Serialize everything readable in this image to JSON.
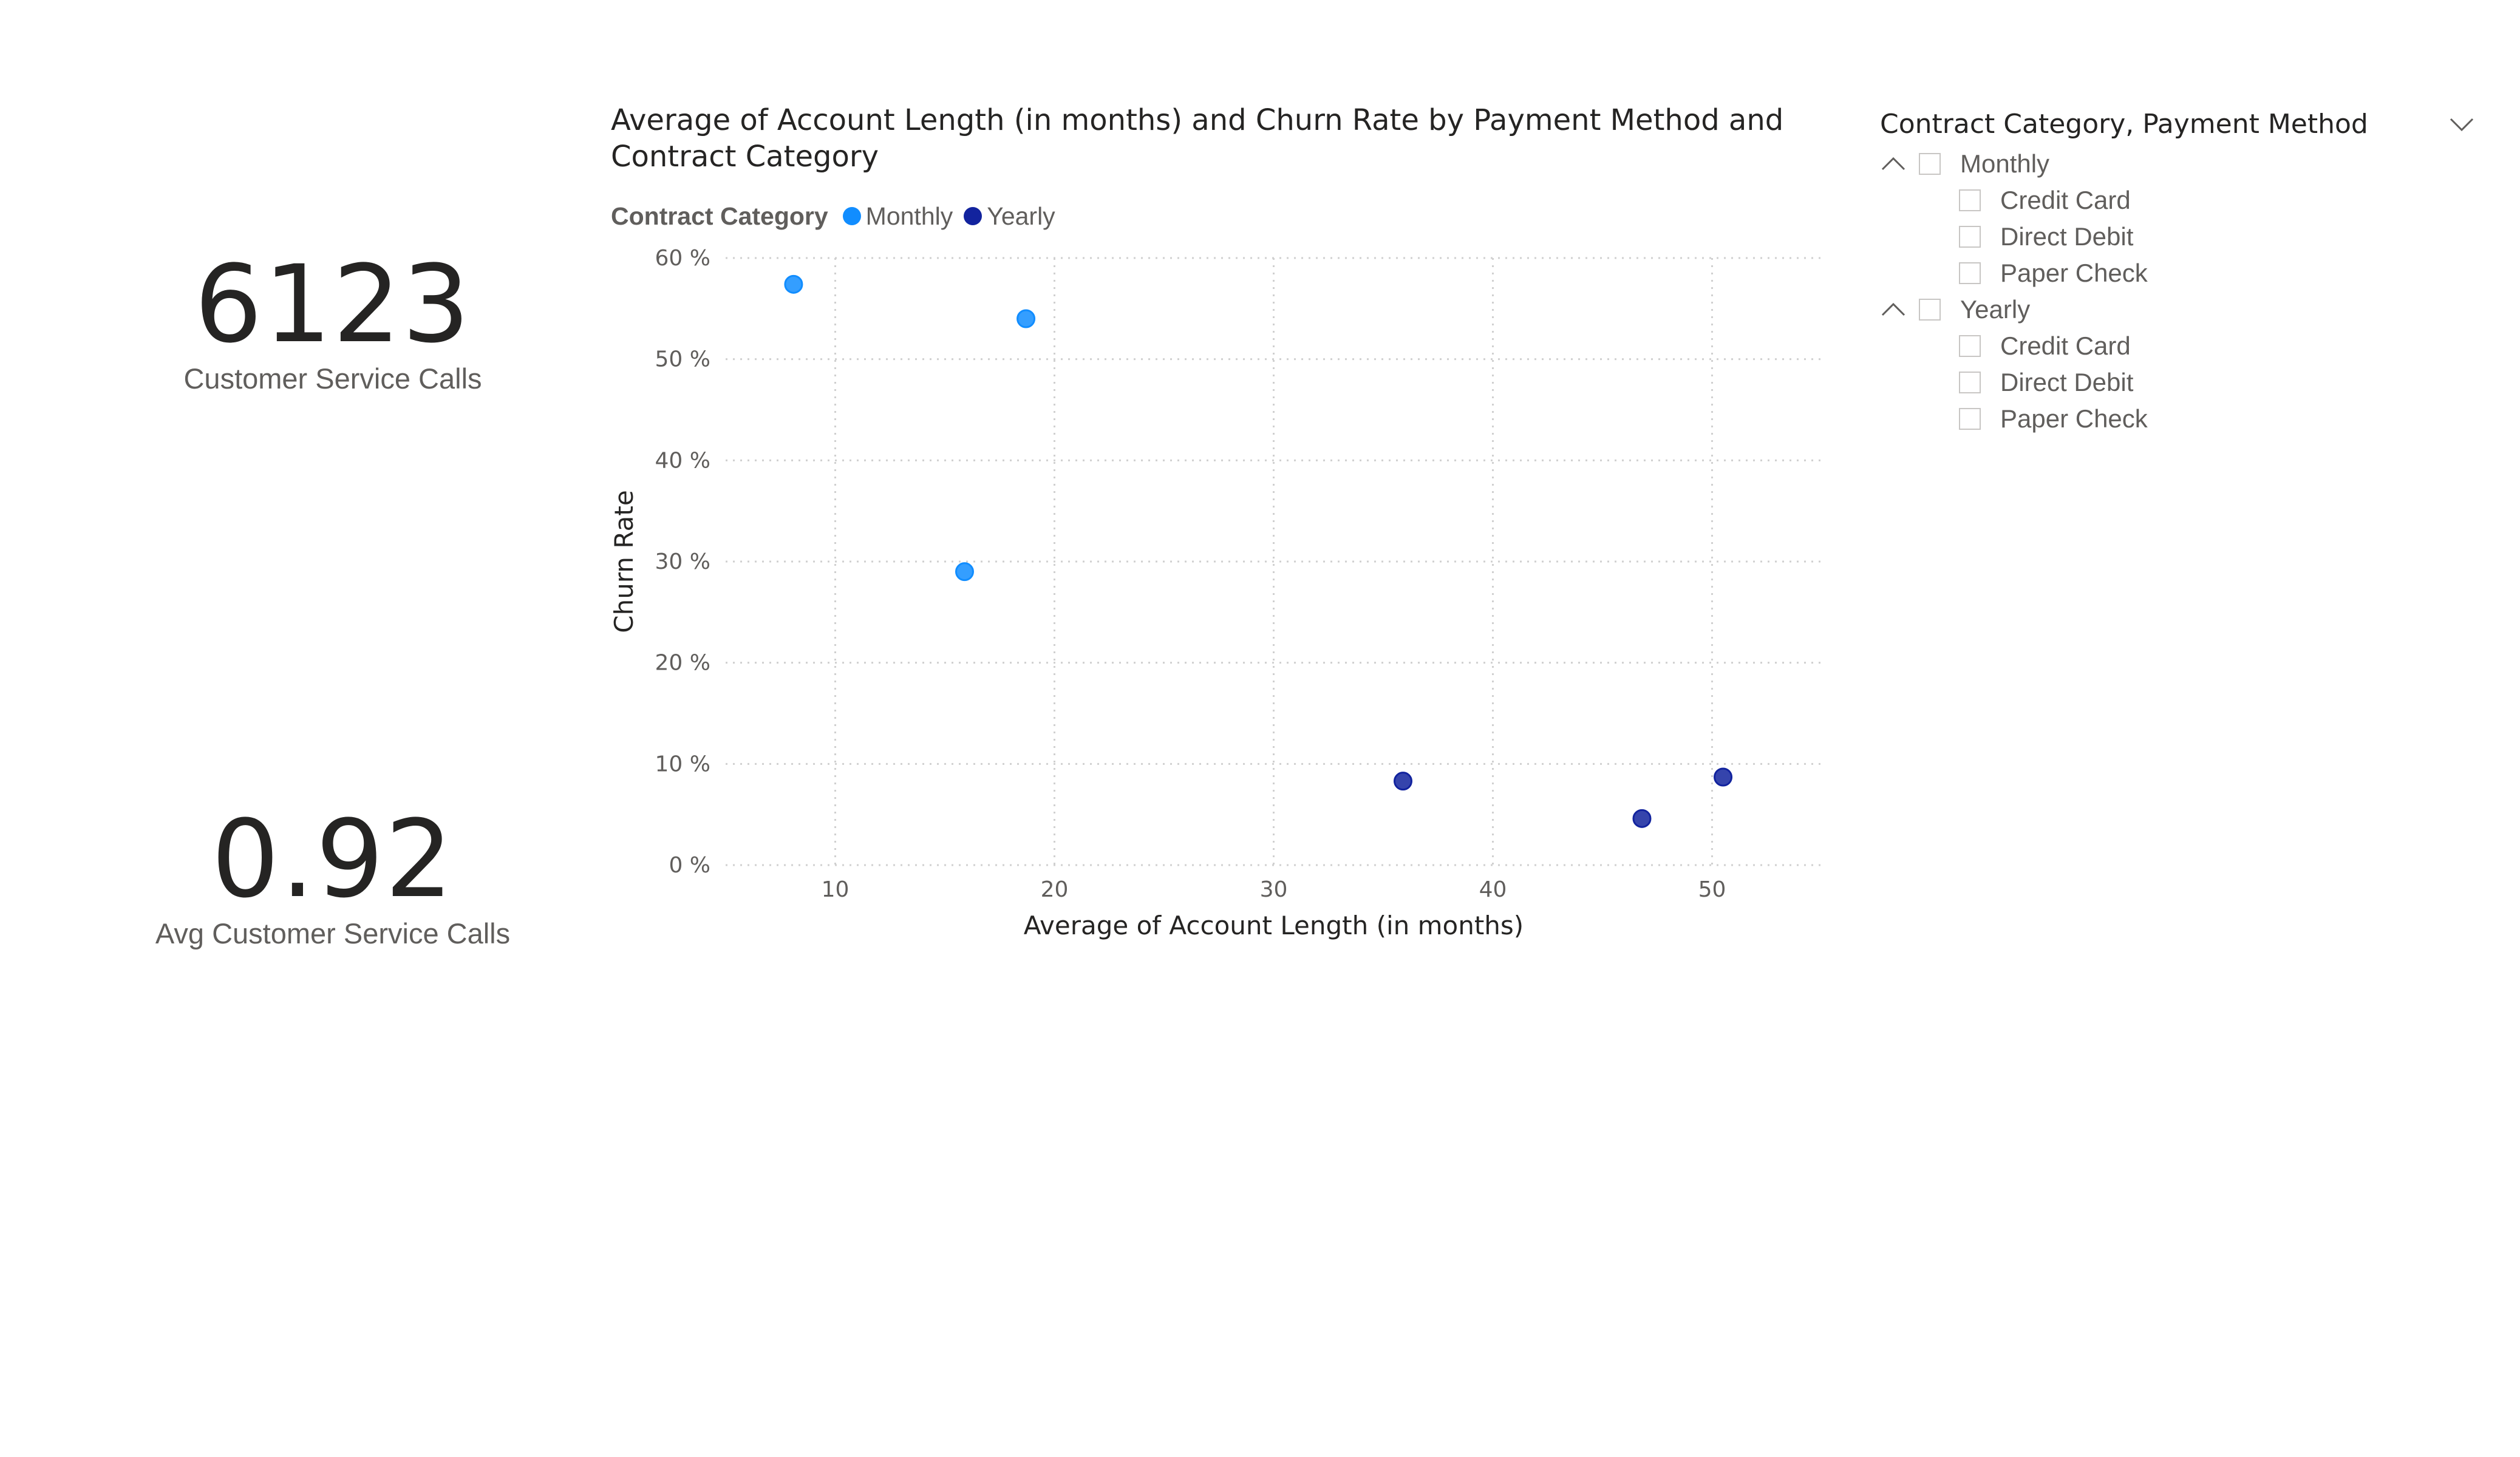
{
  "cards": [
    {
      "value": "6123",
      "label": "Customer Service Calls"
    },
    {
      "value": "0.92",
      "label": "Avg Customer Service Calls"
    }
  ],
  "chart_data": {
    "type": "scatter",
    "title": "Average of Account Length (in months) and Churn Rate by Payment Method and Contract Category",
    "xlabel": "Average of Account Length (in months)",
    "ylabel": "Churn Rate",
    "xlim": [
      5,
      55
    ],
    "ylim": [
      0,
      60
    ],
    "x_ticks": [
      10,
      20,
      30,
      40,
      50
    ],
    "y_ticks": [
      0,
      10,
      20,
      30,
      40,
      50,
      60
    ],
    "y_tick_labels": [
      "0 %",
      "10 %",
      "20 %",
      "30 %",
      "40 %",
      "50 %",
      "60 %"
    ],
    "grid": true,
    "legend": {
      "title": "Contract Category",
      "placement": "top-left"
    },
    "series": [
      {
        "name": "Monthly",
        "color": "#118DFF",
        "points": [
          {
            "x": 8.1,
            "y": 57.4
          },
          {
            "x": 15.9,
            "y": 29.0
          },
          {
            "x": 18.7,
            "y": 54.0
          }
        ]
      },
      {
        "name": "Yearly",
        "color": "#12239E",
        "points": [
          {
            "x": 35.9,
            "y": 8.3
          },
          {
            "x": 46.8,
            "y": 4.6
          },
          {
            "x": 50.5,
            "y": 8.7
          }
        ]
      }
    ]
  },
  "slicer": {
    "title": "Contract Category, Payment Method",
    "groups": [
      {
        "label": "Monthly",
        "children": [
          "Credit Card",
          "Direct Debit",
          "Paper Check"
        ]
      },
      {
        "label": "Yearly",
        "children": [
          "Credit Card",
          "Direct Debit",
          "Paper Check"
        ]
      }
    ],
    "colors": {
      "border": "#C8C6C4",
      "text": "#605E5C"
    }
  }
}
